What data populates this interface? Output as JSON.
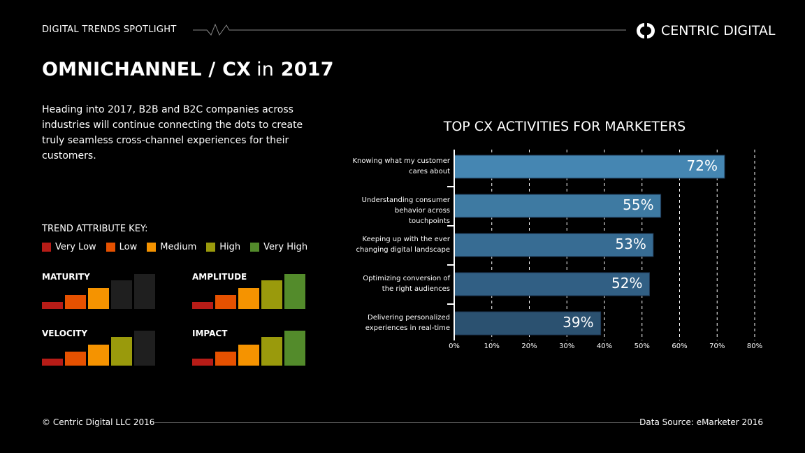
{
  "header": {
    "label": "DIGITAL TRENDS SPOTLIGHT",
    "brand": "CENTRIC DIGITAL"
  },
  "title": {
    "main": "OMNICHANNEL / CX",
    "in": "in",
    "year": "2017"
  },
  "intro": "Heading into 2017, B2B and B2C companies across industries will continue connecting the dots to create truly seamless cross-channel experiences for their customers.",
  "key": {
    "title": "TREND ATTRIBUTE KEY:",
    "levels": [
      {
        "label": "Very Low",
        "color": "#b71c17"
      },
      {
        "label": "Low",
        "color": "#e65100"
      },
      {
        "label": "Medium",
        "color": "#f59300"
      },
      {
        "label": "High",
        "color": "#9a9a0c"
      },
      {
        "label": "Very High",
        "color": "#538b2b"
      }
    ],
    "inactive_color": "#1f1f1f",
    "attributes": [
      {
        "name": "MATURITY",
        "level": 3
      },
      {
        "name": "AMPLITUDE",
        "level": 5
      },
      {
        "name": "VELOCITY",
        "level": 4
      },
      {
        "name": "IMPACT",
        "level": 5
      }
    ]
  },
  "chart_data": {
    "type": "bar",
    "orientation": "horizontal",
    "title": "TOP CX ACTIVITIES FOR MARKETERS",
    "categories": [
      "Knowing what my customer cares about",
      "Understanding consumer behavior across touchpoints",
      "Keeping up with the ever changing digital landscape",
      "Optimizing conversion of the right audiences",
      "Delivering personalized experiences in real-time"
    ],
    "values": [
      72,
      55,
      53,
      52,
      39
    ],
    "data_labels": [
      "72%",
      "55%",
      "53%",
      "52%",
      "39%"
    ],
    "colors": [
      "#4586b2",
      "#3e7aa2",
      "#376c93",
      "#315f84",
      "#2b5170"
    ],
    "xlim": [
      0,
      80
    ],
    "xticks": [
      "0%",
      "10%",
      "20%",
      "30%",
      "40%",
      "50%",
      "60%",
      "70%",
      "80%"
    ],
    "grid": "vertical dashed"
  },
  "footer": {
    "copyright": "© Centric Digital LLC 2016",
    "source": "Data Source: eMarketer 2016"
  }
}
